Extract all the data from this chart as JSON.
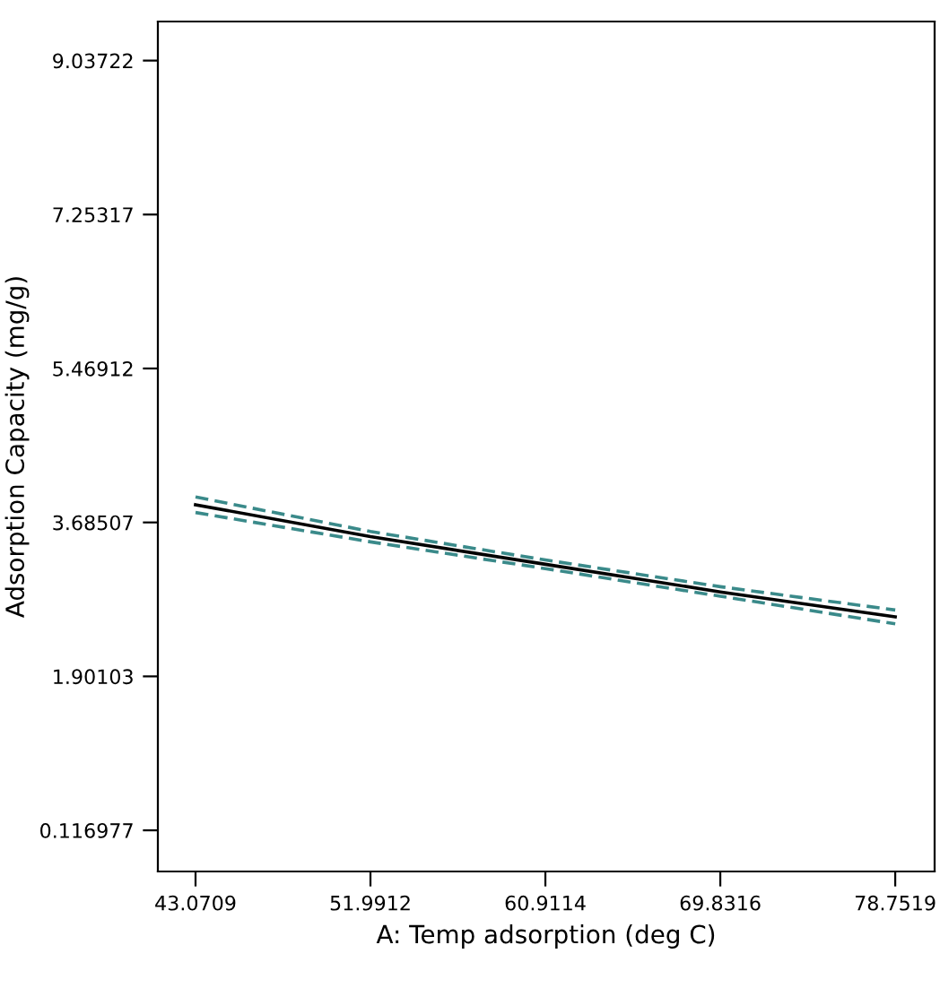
{
  "chart_data": {
    "type": "line",
    "xlabel": "A: Temp adsorption (deg C)",
    "ylabel": "Adsorption Capacity (mg/g)",
    "x": [
      43.0709,
      51.9912,
      60.9114,
      69.8316,
      78.7519
    ],
    "series": [
      {
        "color": "#000000",
        "line_style": "solid",
        "values": [
          3.89,
          3.52,
          3.2,
          2.88,
          2.59
        ]
      },
      {
        "color": "#3a8a8a",
        "line_style": "dashed",
        "values": [
          3.98,
          3.58,
          3.25,
          2.94,
          2.67
        ]
      },
      {
        "color": "#3a8a8a",
        "line_style": "dashed",
        "values": [
          3.8,
          3.46,
          3.15,
          2.83,
          2.51
        ]
      }
    ],
    "xlim": [
      41.15,
      80.76
    ],
    "ylim": [
      -0.36,
      9.49
    ],
    "xticks": [
      {
        "value": 43.0709,
        "label": "43.0709"
      },
      {
        "value": 51.9912,
        "label": "51.9912"
      },
      {
        "value": 60.9114,
        "label": "60.9114"
      },
      {
        "value": 69.8316,
        "label": "69.8316"
      },
      {
        "value": 78.7519,
        "label": "78.7519"
      }
    ],
    "yticks": [
      {
        "value": 0.116977,
        "label": "0.116977"
      },
      {
        "value": 1.90103,
        "label": "1.90103"
      },
      {
        "value": 3.68507,
        "label": "3.68507"
      },
      {
        "value": 5.46912,
        "label": "5.46912"
      },
      {
        "value": 7.25317,
        "label": "7.25317"
      },
      {
        "value": 9.03722,
        "label": "9.03722"
      }
    ],
    "grid": false,
    "legend": false
  }
}
